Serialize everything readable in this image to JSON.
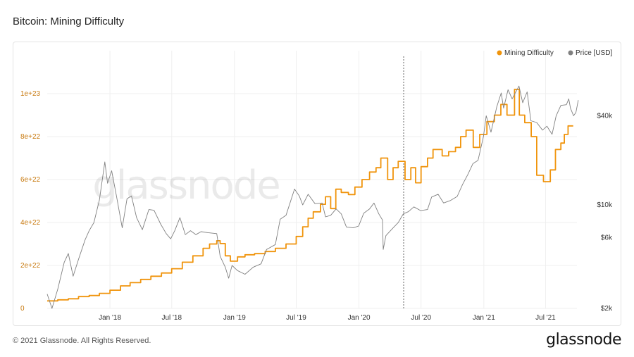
{
  "header": {
    "title": "Bitcoin: Mining Difficulty"
  },
  "footer": {
    "copyright": "© 2021 Glassnode. All Rights Reserved.",
    "brand": "glassnode"
  },
  "colors": {
    "difficulty": "#f0940c",
    "price": "#808080",
    "grid": "#efefef",
    "left_tick": "#c87a10",
    "right_tick": "#333333"
  },
  "chart_data": {
    "type": "line",
    "title": "Bitcoin: Mining Difficulty",
    "watermark": "glassnode",
    "grid": true,
    "legend": {
      "placement": "top-right",
      "entries": [
        "Mining Difficulty",
        "Price [USD]"
      ]
    },
    "x_range": [
      "2017-07-01",
      "2021-10-01"
    ],
    "x_ticks": [
      {
        "date": "2018-01-01",
        "label": "Jan '18"
      },
      {
        "date": "2018-07-01",
        "label": "Jul '18"
      },
      {
        "date": "2019-01-01",
        "label": "Jan '19"
      },
      {
        "date": "2019-07-01",
        "label": "Jul '19"
      },
      {
        "date": "2020-01-01",
        "label": "Jan '20"
      },
      {
        "date": "2020-07-01",
        "label": "Jul '20"
      },
      {
        "date": "2021-01-01",
        "label": "Jan '21"
      },
      {
        "date": "2021-07-01",
        "label": "Jul '21"
      }
    ],
    "marker_date": "2020-05-11",
    "y_left": {
      "scale": "linear",
      "ylim": [
        0,
        1.2e+23
      ],
      "ticks": [
        {
          "value": 0,
          "label": "0"
        },
        {
          "value": 2e+22,
          "label": "2e+22"
        },
        {
          "value": 4e+22,
          "label": "4e+22"
        },
        {
          "value": 6e+22,
          "label": "6e+22"
        },
        {
          "value": 8e+22,
          "label": "8e+22"
        },
        {
          "value": 1e+23,
          "label": "1e+23"
        }
      ]
    },
    "y_right": {
      "scale": "log",
      "ylim": [
        2000,
        110000
      ],
      "ticks": [
        {
          "value": 2000,
          "label": "$2k"
        },
        {
          "value": 6000,
          "label": "$6k"
        },
        {
          "value": 10000,
          "label": "$10k"
        },
        {
          "value": 40000,
          "label": "$40k"
        }
      ]
    },
    "series": [
      {
        "name": "Mining Difficulty",
        "axis": "left",
        "step": true,
        "points": [
          [
            "2017-07-01",
            3.5e+21
          ],
          [
            "2017-08-01",
            4e+21
          ],
          [
            "2017-09-01",
            4.5e+21
          ],
          [
            "2017-10-01",
            5.5e+21
          ],
          [
            "2017-11-01",
            6e+21
          ],
          [
            "2017-12-01",
            7e+21
          ],
          [
            "2018-01-01",
            8.5e+21
          ],
          [
            "2018-02-01",
            1.05e+22
          ],
          [
            "2018-03-01",
            1.2e+22
          ],
          [
            "2018-04-01",
            1.35e+22
          ],
          [
            "2018-05-01",
            1.5e+22
          ],
          [
            "2018-06-01",
            1.65e+22
          ],
          [
            "2018-07-01",
            1.85e+22
          ],
          [
            "2018-08-01",
            2.15e+22
          ],
          [
            "2018-09-01",
            2.45e+22
          ],
          [
            "2018-10-01",
            2.8e+22
          ],
          [
            "2018-10-20",
            3e+22
          ],
          [
            "2018-11-10",
            3.15e+22
          ],
          [
            "2018-11-20",
            3.02e+22
          ],
          [
            "2018-12-05",
            2.45e+22
          ],
          [
            "2018-12-20",
            2.2e+22
          ],
          [
            "2019-01-10",
            2.4e+22
          ],
          [
            "2019-02-01",
            2.5e+22
          ],
          [
            "2019-03-01",
            2.55e+22
          ],
          [
            "2019-04-01",
            2.65e+22
          ],
          [
            "2019-05-01",
            2.8e+22
          ],
          [
            "2019-06-01",
            3e+22
          ],
          [
            "2019-07-01",
            3.35e+22
          ],
          [
            "2019-07-20",
            3.8e+22
          ],
          [
            "2019-08-05",
            4.2e+22
          ],
          [
            "2019-08-20",
            4.5e+22
          ],
          [
            "2019-09-10",
            4.85e+22
          ],
          [
            "2019-09-25",
            5.2e+22
          ],
          [
            "2019-10-10",
            4.65e+22
          ],
          [
            "2019-10-25",
            5.55e+22
          ],
          [
            "2019-11-10",
            5.4e+22
          ],
          [
            "2019-12-01",
            5.3e+22
          ],
          [
            "2019-12-20",
            5.65e+22
          ],
          [
            "2020-01-10",
            6e+22
          ],
          [
            "2020-02-01",
            6.35e+22
          ],
          [
            "2020-02-20",
            6.55e+22
          ],
          [
            "2020-03-05",
            7e+22
          ],
          [
            "2020-03-25",
            6e+22
          ],
          [
            "2020-04-10",
            6.55e+22
          ],
          [
            "2020-04-25",
            6.85e+22
          ],
          [
            "2020-05-15",
            6e+22
          ],
          [
            "2020-06-01",
            6.55e+22
          ],
          [
            "2020-06-15",
            5.85e+22
          ],
          [
            "2020-07-01",
            6.6e+22
          ],
          [
            "2020-07-20",
            7e+22
          ],
          [
            "2020-08-05",
            7.4e+22
          ],
          [
            "2020-09-01",
            7.1e+22
          ],
          [
            "2020-09-20",
            7.3e+22
          ],
          [
            "2020-10-10",
            7.5e+22
          ],
          [
            "2020-10-25",
            8e+22
          ],
          [
            "2020-11-10",
            8.3e+22
          ],
          [
            "2020-12-01",
            7.5e+22
          ],
          [
            "2020-12-20",
            8.1e+22
          ],
          [
            "2021-01-10",
            8.7e+22
          ],
          [
            "2021-02-01",
            9e+22
          ],
          [
            "2021-02-20",
            9.5e+22
          ],
          [
            "2021-03-10",
            9e+22
          ],
          [
            "2021-04-01",
            1.02e+23
          ],
          [
            "2021-04-15",
            9e+22
          ],
          [
            "2021-05-01",
            8.65e+22
          ],
          [
            "2021-05-20",
            8e+22
          ],
          [
            "2021-06-05",
            6.2e+22
          ],
          [
            "2021-06-25",
            5.9e+22
          ],
          [
            "2021-07-15",
            6.45e+22
          ],
          [
            "2021-07-30",
            7.4e+22
          ],
          [
            "2021-08-15",
            7.7e+22
          ],
          [
            "2021-08-25",
            8.1e+22
          ],
          [
            "2021-09-05",
            8.5e+22
          ],
          [
            "2021-09-20",
            8.5e+22
          ]
        ]
      },
      {
        "name": "Price [USD]",
        "axis": "right",
        "step": false,
        "points": [
          [
            "2017-07-01",
            2500
          ],
          [
            "2017-07-15",
            2000
          ],
          [
            "2017-08-01",
            2700
          ],
          [
            "2017-08-20",
            4100
          ],
          [
            "2017-09-01",
            4700
          ],
          [
            "2017-09-15",
            3300
          ],
          [
            "2017-10-01",
            4300
          ],
          [
            "2017-10-20",
            5800
          ],
          [
            "2017-11-01",
            6700
          ],
          [
            "2017-11-15",
            7600
          ],
          [
            "2017-12-01",
            10800
          ],
          [
            "2017-12-17",
            19500
          ],
          [
            "2017-12-25",
            14000
          ],
          [
            "2018-01-06",
            17000
          ],
          [
            "2018-01-20",
            11500
          ],
          [
            "2018-02-06",
            7000
          ],
          [
            "2018-02-20",
            11000
          ],
          [
            "2018-03-05",
            11500
          ],
          [
            "2018-03-20",
            8200
          ],
          [
            "2018-04-06",
            6800
          ],
          [
            "2018-04-25",
            9300
          ],
          [
            "2018-05-10",
            9200
          ],
          [
            "2018-05-30",
            7400
          ],
          [
            "2018-06-15",
            6400
          ],
          [
            "2018-06-28",
            5900
          ],
          [
            "2018-07-10",
            6700
          ],
          [
            "2018-07-25",
            8200
          ],
          [
            "2018-08-10",
            6300
          ],
          [
            "2018-08-25",
            6700
          ],
          [
            "2018-09-10",
            6300
          ],
          [
            "2018-09-25",
            6600
          ],
          [
            "2018-10-15",
            6500
          ],
          [
            "2018-11-10",
            6400
          ],
          [
            "2018-11-20",
            4500
          ],
          [
            "2018-12-05",
            3800
          ],
          [
            "2018-12-15",
            3200
          ],
          [
            "2018-12-25",
            3900
          ],
          [
            "2019-01-10",
            3600
          ],
          [
            "2019-02-01",
            3400
          ],
          [
            "2019-02-25",
            3800
          ],
          [
            "2019-03-20",
            4000
          ],
          [
            "2019-04-05",
            5000
          ],
          [
            "2019-05-01",
            5400
          ],
          [
            "2019-05-15",
            8000
          ],
          [
            "2019-06-01",
            8500
          ],
          [
            "2019-06-26",
            12800
          ],
          [
            "2019-07-10",
            11500
          ],
          [
            "2019-07-20",
            10000
          ],
          [
            "2019-08-05",
            11800
          ],
          [
            "2019-08-25",
            10200
          ],
          [
            "2019-09-15",
            10300
          ],
          [
            "2019-09-25",
            8300
          ],
          [
            "2019-10-10",
            8500
          ],
          [
            "2019-10-26",
            9400
          ],
          [
            "2019-11-10",
            8700
          ],
          [
            "2019-11-25",
            7100
          ],
          [
            "2019-12-15",
            7000
          ],
          [
            "2019-12-31",
            7200
          ],
          [
            "2020-01-15",
            8800
          ],
          [
            "2020-02-01",
            9400
          ],
          [
            "2020-02-14",
            10300
          ],
          [
            "2020-02-28",
            8700
          ],
          [
            "2020-03-10",
            7900
          ],
          [
            "2020-03-12",
            5000
          ],
          [
            "2020-03-20",
            6200
          ],
          [
            "2020-04-05",
            6800
          ],
          [
            "2020-04-25",
            7600
          ],
          [
            "2020-05-10",
            8700
          ],
          [
            "2020-05-25",
            9000
          ],
          [
            "2020-06-10",
            9700
          ],
          [
            "2020-06-30",
            9150
          ],
          [
            "2020-07-20",
            9300
          ],
          [
            "2020-08-01",
            11300
          ],
          [
            "2020-08-20",
            11800
          ],
          [
            "2020-09-05",
            10300
          ],
          [
            "2020-09-25",
            10700
          ],
          [
            "2020-10-15",
            11400
          ],
          [
            "2020-10-31",
            13800
          ],
          [
            "2020-11-15",
            16000
          ],
          [
            "2020-11-30",
            19000
          ],
          [
            "2020-12-15",
            20000
          ],
          [
            "2020-12-31",
            29000
          ],
          [
            "2021-01-08",
            40000
          ],
          [
            "2021-01-22",
            31000
          ],
          [
            "2021-02-08",
            46000
          ],
          [
            "2021-02-21",
            57000
          ],
          [
            "2021-02-28",
            45000
          ],
          [
            "2021-03-13",
            60000
          ],
          [
            "2021-03-25",
            52000
          ],
          [
            "2021-04-14",
            63500
          ],
          [
            "2021-04-25",
            49000
          ],
          [
            "2021-05-08",
            58000
          ],
          [
            "2021-05-19",
            37000
          ],
          [
            "2021-06-05",
            36000
          ],
          [
            "2021-06-22",
            32000
          ],
          [
            "2021-07-05",
            34000
          ],
          [
            "2021-07-20",
            30000
          ],
          [
            "2021-08-01",
            40000
          ],
          [
            "2021-08-15",
            47000
          ],
          [
            "2021-08-31",
            47500
          ],
          [
            "2021-09-07",
            52000
          ],
          [
            "2021-09-12",
            45000
          ],
          [
            "2021-09-21",
            40000
          ],
          [
            "2021-09-28",
            42000
          ],
          [
            "2021-10-05",
            51000
          ]
        ]
      }
    ]
  }
}
